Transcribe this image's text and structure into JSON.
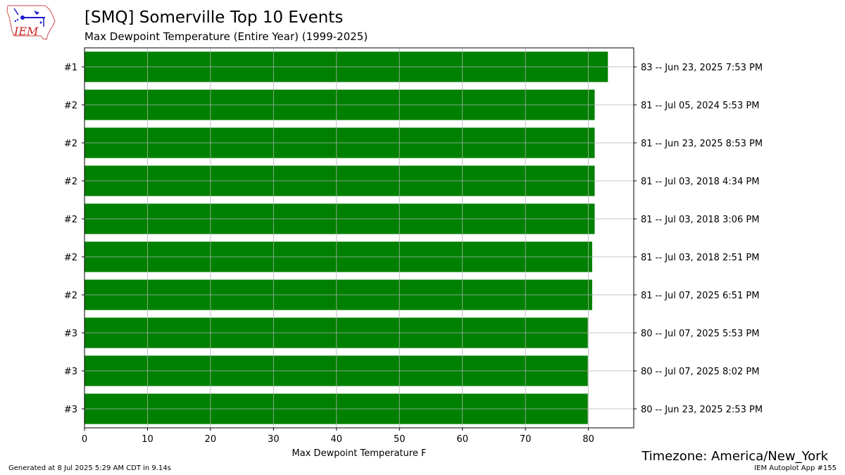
{
  "header": {
    "title": "[SMQ] Somerville Top 10 Events",
    "subtitle": "Max Dewpoint Temperature  (Entire Year) (1999-2025)"
  },
  "logo": {
    "text": "IEM"
  },
  "footer": {
    "timezone": "Timezone: America/New_York",
    "generated": "Generated at 8 Jul 2025 5:29 AM CDT in 9.14s",
    "app": "IEM Autoplot App #155"
  },
  "colors": {
    "bar": "#008000",
    "grid": "#b0b0b0"
  },
  "chart_data": {
    "type": "bar",
    "orientation": "horizontal",
    "title": "[SMQ] Somerville Top 10 Events",
    "subtitle": "Max Dewpoint Temperature  (Entire Year) (1999-2025)",
    "xlabel": "Max Dewpoint Temperature F",
    "ylabel": "",
    "xlim": [
      0,
      87.2
    ],
    "xticks": [
      0,
      10,
      20,
      30,
      40,
      50,
      60,
      70,
      80
    ],
    "grid": true,
    "ranks": [
      "#1",
      "#2",
      "#2",
      "#2",
      "#2",
      "#2",
      "#2",
      "#3",
      "#3",
      "#3"
    ],
    "values": [
      83.1,
      81.0,
      81.0,
      81.0,
      81.0,
      80.6,
      80.6,
      79.9,
      79.9,
      79.9
    ],
    "labels": [
      "83 -- Jun 23, 2025 7:53 PM",
      "81 -- Jul 05, 2024 5:53 PM",
      "81 -- Jun 23, 2025 8:53 PM",
      "81 -- Jul 03, 2018 4:34 PM",
      "81 -- Jul 03, 2018 3:06 PM",
      "81 -- Jul 03, 2018 2:51 PM",
      "81 -- Jul 07, 2025 6:51 PM",
      "80 -- Jul 07, 2025 5:53 PM",
      "80 -- Jul 07, 2025 8:02 PM",
      "80 -- Jun 23, 2025 2:53 PM"
    ]
  }
}
